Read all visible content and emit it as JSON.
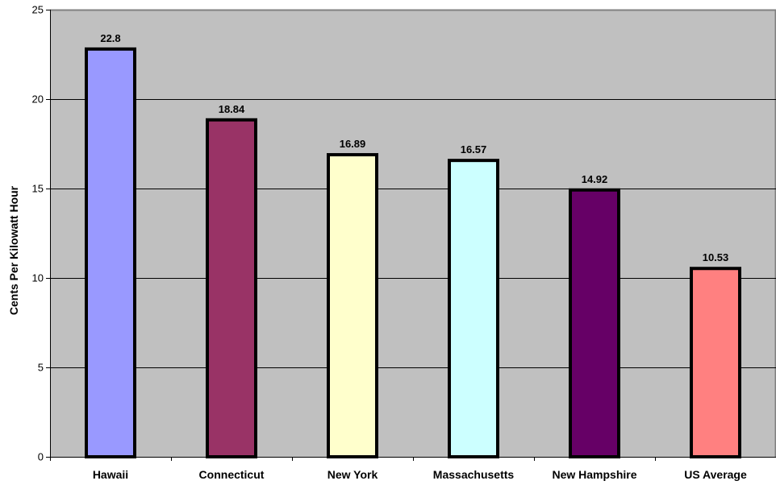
{
  "chart_data": {
    "type": "bar",
    "title": "",
    "xlabel": "",
    "ylabel": "Cents Per Kilowatt Hour",
    "ylim": [
      0,
      25
    ],
    "yticks": [
      0,
      5,
      10,
      15,
      20,
      25
    ],
    "grid": true,
    "legend": "none",
    "categories": [
      "Hawaii",
      "Connecticut",
      "New York",
      "Massachusetts",
      "New Hampshire",
      "US Average"
    ],
    "values": [
      22.8,
      18.84,
      16.89,
      16.57,
      14.92,
      10.53
    ],
    "data_labels": [
      "22.8",
      "18.84",
      "16.89",
      "16.57",
      "14.92",
      "10.53"
    ],
    "colors": [
      "#9999FF",
      "#993366",
      "#FFFFCC",
      "#CCFFFF",
      "#660066",
      "#FF8080"
    ],
    "plot_background": "#C0C0C0",
    "bar_outline": "#000000"
  }
}
